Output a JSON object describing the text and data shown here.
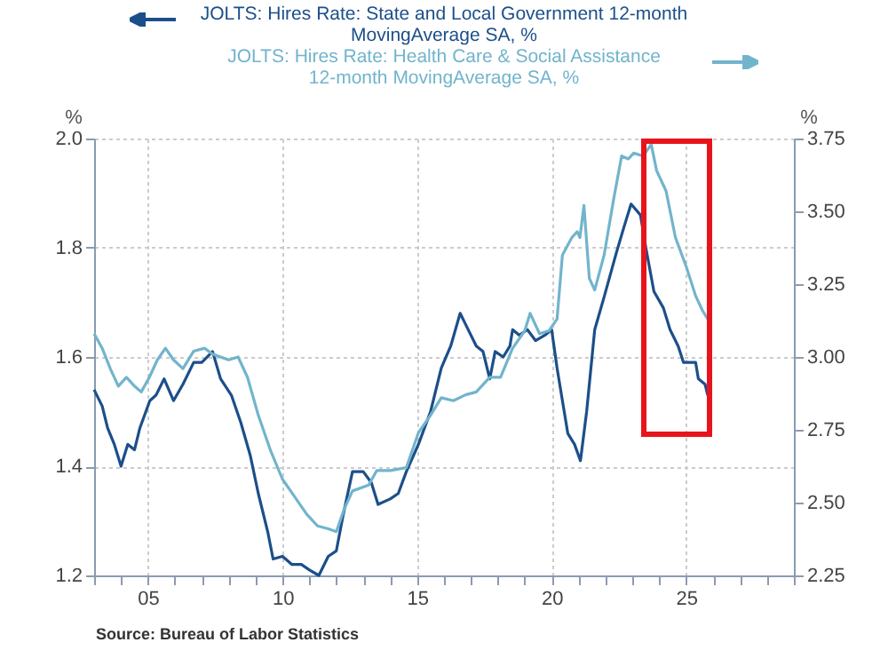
{
  "chart_data": {
    "type": "line",
    "grid": true,
    "ylabel": "%",
    "y2label": "%",
    "xlim": [
      2003,
      2029
    ],
    "xticks": [
      {
        "value": 2003,
        "label": null
      },
      {
        "value": 2004,
        "label": null
      },
      {
        "value": 2005,
        "label": "05"
      },
      {
        "value": 2006,
        "label": null
      },
      {
        "value": 2007,
        "label": null
      },
      {
        "value": 2008,
        "label": null
      },
      {
        "value": 2009,
        "label": null
      },
      {
        "value": 2010,
        "label": "10"
      },
      {
        "value": 2011,
        "label": null
      },
      {
        "value": 2012,
        "label": null
      },
      {
        "value": 2013,
        "label": null
      },
      {
        "value": 2014,
        "label": null
      },
      {
        "value": 2015,
        "label": "15"
      },
      {
        "value": 2016,
        "label": null
      },
      {
        "value": 2017,
        "label": null
      },
      {
        "value": 2018,
        "label": null
      },
      {
        "value": 2019,
        "label": null
      },
      {
        "value": 2020,
        "label": "20"
      },
      {
        "value": 2021,
        "label": null
      },
      {
        "value": 2022,
        "label": null
      },
      {
        "value": 2023,
        "label": null
      },
      {
        "value": 2024,
        "label": null
      },
      {
        "value": 2025,
        "label": "25"
      },
      {
        "value": 2026,
        "label": null
      },
      {
        "value": 2027,
        "label": null
      },
      {
        "value": 2028,
        "label": null
      },
      {
        "value": 2029,
        "label": null
      }
    ],
    "ylim": [
      1.2,
      2.0
    ],
    "yticks": [
      1.2,
      1.4,
      1.6,
      1.8,
      {
        "value": 2.0,
        "label": "2.0"
      }
    ],
    "y2lim": [
      2.25,
      3.75
    ],
    "y2ticks": [
      2.25,
      {
        "value": 2.5,
        "label": "2.50"
      },
      2.75,
      {
        "value": 3.0,
        "label": "3.00"
      },
      3.25,
      {
        "value": 3.5,
        "label": "3.50"
      },
      3.75
    ],
    "annotations": [
      "Source:  Bureau of Labor Statistics"
    ],
    "series": [
      {
        "name": "JOLTS: Hires Rate: State and Local Government 12-month MovingAverage    SA, %",
        "color": "#1c4f8a",
        "axis": "y",
        "x": [
          2003.0,
          2003.3,
          2003.5,
          2003.75,
          2004.0,
          2004.25,
          2004.5,
          2004.7,
          2005.07,
          2005.3,
          2005.6,
          2005.95,
          2006.3,
          2006.7,
          2007.0,
          2007.4,
          2007.7,
          2008.1,
          2008.45,
          2008.8,
          2009.1,
          2009.45,
          2009.65,
          2010.0,
          2010.35,
          2010.7,
          2011.0,
          2011.35,
          2011.7,
          2012.0,
          2012.25,
          2012.6,
          2013.0,
          2013.3,
          2013.55,
          2014.0,
          2014.3,
          2014.6,
          2015.05,
          2015.5,
          2015.9,
          2016.25,
          2016.6,
          2016.8,
          2017.2,
          2017.45,
          2017.7,
          2017.9,
          2018.2,
          2018.45,
          2018.55,
          2018.8,
          2019.1,
          2019.4,
          2019.75,
          2020.0,
          2020.2,
          2020.4,
          2020.6,
          2020.85,
          2021.07,
          2021.3,
          2021.6,
          2021.95,
          2022.4,
          2022.7,
          2022.95,
          2023.3,
          2023.5,
          2023.8,
          2024.15,
          2024.4,
          2024.7,
          2024.9,
          2025.35,
          2025.45,
          2025.7,
          2025.8
        ],
        "values": [
          1.54,
          1.51,
          1.47,
          1.44,
          1.4,
          1.44,
          1.43,
          1.47,
          1.52,
          1.53,
          1.56,
          1.52,
          1.55,
          1.59,
          1.59,
          1.61,
          1.56,
          1.53,
          1.48,
          1.42,
          1.35,
          1.28,
          1.23,
          1.235,
          1.22,
          1.22,
          1.21,
          1.2,
          1.235,
          1.245,
          1.31,
          1.39,
          1.39,
          1.37,
          1.33,
          1.34,
          1.35,
          1.39,
          1.44,
          1.5,
          1.58,
          1.62,
          1.68,
          1.66,
          1.62,
          1.61,
          1.56,
          1.61,
          1.6,
          1.62,
          1.65,
          1.64,
          1.65,
          1.63,
          1.64,
          1.65,
          1.58,
          1.52,
          1.46,
          1.44,
          1.41,
          1.5,
          1.65,
          1.71,
          1.79,
          1.84,
          1.88,
          1.86,
          1.8,
          1.72,
          1.69,
          1.65,
          1.62,
          1.59,
          1.59,
          1.56,
          1.55,
          1.53
        ]
      },
      {
        "name": "JOLTS: Hires Rate: Health Care & Social Assistance 12-month MovingAverage    SA, %",
        "color": "#72b4cc",
        "axis": "y2",
        "x": [
          2003.0,
          2003.3,
          2003.6,
          2003.9,
          2004.2,
          2004.5,
          2004.75,
          2005.05,
          2005.35,
          2005.65,
          2005.95,
          2006.3,
          2006.7,
          2007.1,
          2007.4,
          2008.0,
          2008.35,
          2008.7,
          2009.1,
          2009.55,
          2010.0,
          2010.45,
          2010.9,
          2011.3,
          2011.7,
          2012.0,
          2012.3,
          2012.6,
          2013.2,
          2013.5,
          2014.0,
          2014.6,
          2015.05,
          2015.5,
          2015.9,
          2016.35,
          2016.8,
          2017.2,
          2017.7,
          2018.1,
          2018.55,
          2019.0,
          2019.2,
          2019.55,
          2019.9,
          2020.2,
          2020.4,
          2020.75,
          2020.95,
          2021.05,
          2021.2,
          2021.4,
          2021.6,
          2021.95,
          2022.3,
          2022.6,
          2022.85,
          2023.05,
          2023.4,
          2023.7,
          2023.9,
          2024.25,
          2024.6,
          2025.0,
          2025.35,
          2025.6,
          2025.8
        ],
        "values": [
          3.08,
          3.03,
          2.96,
          2.9,
          2.93,
          2.9,
          2.88,
          2.93,
          2.99,
          3.03,
          2.99,
          2.96,
          3.02,
          3.03,
          3.01,
          2.99,
          3.0,
          2.93,
          2.8,
          2.68,
          2.58,
          2.52,
          2.46,
          2.42,
          2.41,
          2.4,
          2.48,
          2.54,
          2.56,
          2.61,
          2.61,
          2.62,
          2.74,
          2.8,
          2.86,
          2.85,
          2.87,
          2.88,
          2.93,
          2.93,
          3.03,
          3.09,
          3.15,
          3.08,
          3.09,
          3.13,
          3.35,
          3.41,
          3.43,
          3.41,
          3.52,
          3.27,
          3.23,
          3.35,
          3.54,
          3.69,
          3.68,
          3.7,
          3.69,
          3.73,
          3.64,
          3.57,
          3.41,
          3.31,
          3.21,
          3.16,
          3.13
        ]
      }
    ]
  }
}
